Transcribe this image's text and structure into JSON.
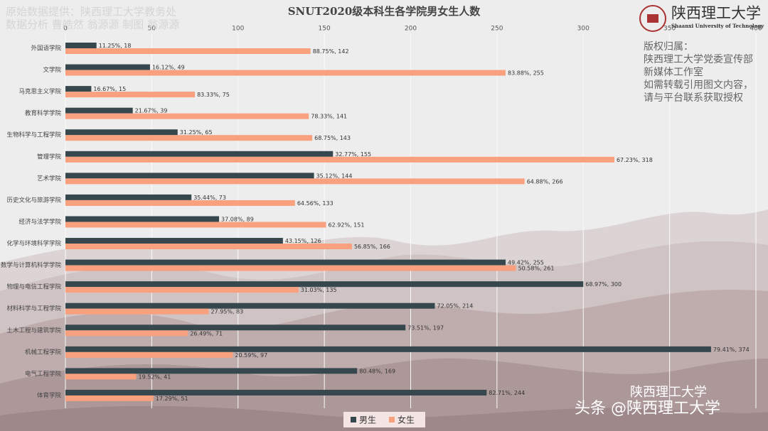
{
  "chart_data": {
    "type": "hbar",
    "title": "SNUT2020级本科生各学院男女生人数",
    "categories": [
      "外国语学院",
      "文学院",
      "马克思主义学院",
      "教育科学学院",
      "生物科学与工程学院",
      "管理学院",
      "艺术学院",
      "历史文化与旅游学院",
      "经济与法学学院",
      "化学与环境科学学院",
      "数学与计算机科学学院",
      "物理与电信工程学院",
      "材料科学与工程学院",
      "土木工程与建筑学院",
      "机械工程学院",
      "电气工程学院",
      "体育学院"
    ],
    "series": [
      {
        "name": "男生",
        "color": "#36474e",
        "values": [
          18,
          49,
          15,
          39,
          65,
          155,
          144,
          73,
          89,
          126,
          255,
          300,
          214,
          197,
          374,
          169,
          244
        ],
        "value_labels": [
          "11.25%, 18",
          "16.12%, 49",
          "16.67%, 15",
          "21.67%, 39",
          "31.25%, 65",
          "32.77%, 155",
          "35.12%, 144",
          "35.44%, 73",
          "37.08%, 89",
          "43.15%, 126",
          "49.42%, 255",
          "68.97%, 300",
          "72.05%, 214",
          "73.51%, 197",
          "79.41%, 374",
          "80.48%, 169",
          "82.71%, 244"
        ]
      },
      {
        "name": "女生",
        "color": "#f9a07f",
        "values": [
          142,
          255,
          75,
          141,
          143,
          318,
          266,
          133,
          151,
          166,
          261,
          135,
          83,
          71,
          97,
          41,
          51
        ],
        "value_labels": [
          "88.75%, 142",
          "83.88%, 255",
          "83.33%, 75",
          "78.33%, 141",
          "68.75%, 143",
          "67.23%, 318",
          "64.88%, 266",
          "64.56%, 133",
          "62.92%, 151",
          "56.85%, 166",
          "50.58%, 261",
          "31.03%, 135",
          "27.95%, 83",
          "26.49%, 71",
          "20.59%, 97",
          "19.52%, 41",
          "17.29%, 51"
        ]
      }
    ],
    "xlim": [
      0,
      400
    ],
    "xticks": [
      0,
      50,
      100,
      150,
      200,
      250,
      300,
      350,
      400
    ],
    "grid": true,
    "legend": "bottom"
  },
  "source_note": [
    "原始数据提供：陕西理工大学教务处",
    "数据分析 曹皓然 翁源源 制图 翁源源"
  ],
  "logo": {
    "name": "陕西理工大学",
    "english": "Shaanxi University of Technology"
  },
  "copyright": [
    "版权归属：",
    "陕西理工大学党委宣传部",
    "新媒体工作室",
    "如需转载引用图文内容，",
    "请与平台联系获取授权"
  ],
  "watermark": {
    "account": "陕西理工大学",
    "platform": "头条 @陕西理工大学"
  }
}
